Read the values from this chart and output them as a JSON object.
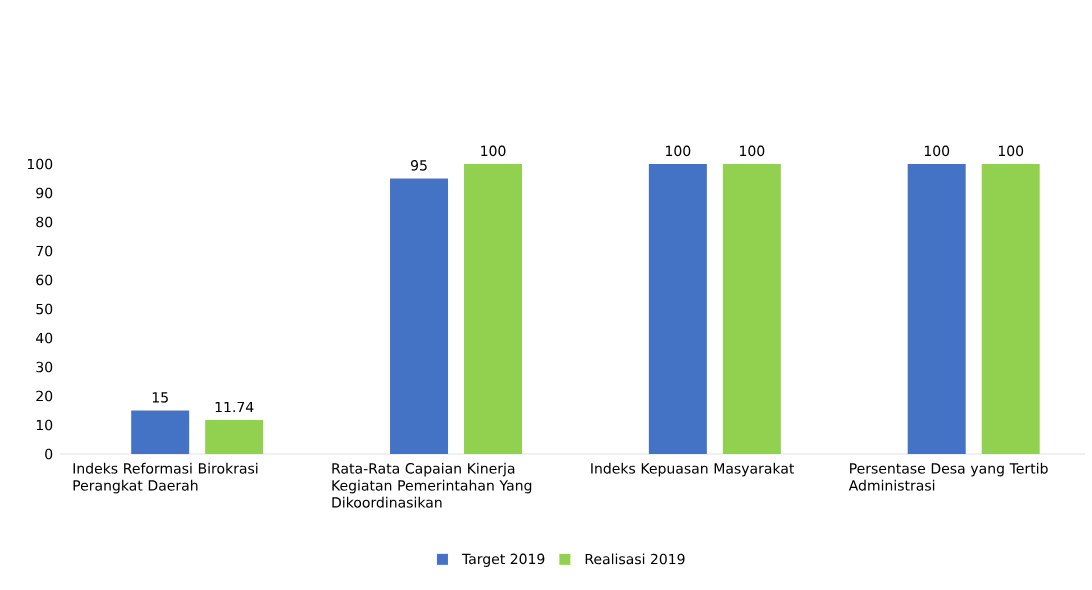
{
  "chart_data": {
    "type": "bar",
    "categories": [
      "Indeks Reformasi Birokrasi Perangkat Daerah",
      "Rata-Rata Capaian Kinerja Kegiatan Pemerintahan Yang Dikoordinasikan",
      "Indeks Kepuasan Masyarakat",
      "Persentase Desa yang Tertib Administrasi"
    ],
    "series": [
      {
        "name": "Target 2019",
        "color": "#4472c4",
        "values": [
          15,
          95,
          100,
          100
        ]
      },
      {
        "name": "Realisasi 2019",
        "color": "#92d050",
        "values": [
          11.74,
          100,
          100,
          100
        ]
      }
    ],
    "ylim": [
      0,
      100
    ],
    "yticks": [
      0,
      10,
      20,
      30,
      40,
      50,
      60,
      70,
      80,
      90,
      100
    ],
    "data_labels": true,
    "grid": false,
    "legend": "bottom"
  }
}
